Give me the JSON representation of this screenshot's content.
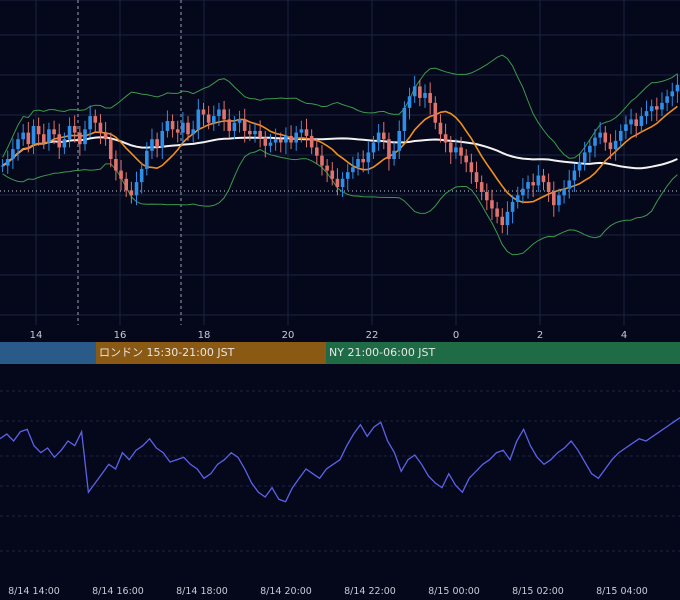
{
  "colors": {
    "background": "#05071a",
    "grid": "#1c2440",
    "candle_up": "#2f8fe8",
    "candle_down": "#e0736b",
    "bollinger": "#3c9a4d",
    "ma_short": "#ef8f1f",
    "ma_long": "#f2f2f2",
    "oscillator": "#5b62e8",
    "axis_text": "#c8cad6",
    "tokyo": "#2a5a8a",
    "london": "#8a5a14",
    "newyork": "#1f6b45"
  },
  "sessions": [
    {
      "label": "",
      "color": "#2a5a8a"
    },
    {
      "label": "ロンドン 15:30-21:00 JST",
      "color": "#8a5a14"
    },
    {
      "label": "NY 21:00-06:00 JST",
      "color": "#1f6b45"
    }
  ],
  "chart_data": [
    {
      "type": "candlestick",
      "x_tick_labels": [
        "14",
        "16",
        "18",
        "20",
        "22",
        "0",
        "2",
        "4"
      ],
      "series_close": [
        0.36,
        0.4,
        0.46,
        0.52,
        0.56,
        0.49,
        0.6,
        0.55,
        0.5,
        0.58,
        0.55,
        0.47,
        0.52,
        0.6,
        0.56,
        0.49,
        0.58,
        0.66,
        0.62,
        0.56,
        0.52,
        0.4,
        0.33,
        0.28,
        0.21,
        0.18,
        0.26,
        0.34,
        0.45,
        0.52,
        0.47,
        0.57,
        0.63,
        0.58,
        0.56,
        0.62,
        0.55,
        0.58,
        0.7,
        0.67,
        0.62,
        0.66,
        0.7,
        0.64,
        0.57,
        0.62,
        0.64,
        0.57,
        0.55,
        0.57,
        0.53,
        0.48,
        0.5,
        0.52,
        0.5,
        0.54,
        0.5,
        0.56,
        0.58,
        0.54,
        0.47,
        0.42,
        0.36,
        0.33,
        0.28,
        0.23,
        0.28,
        0.32,
        0.35,
        0.4,
        0.38,
        0.44,
        0.5,
        0.56,
        0.52,
        0.4,
        0.45,
        0.57,
        0.71,
        0.78,
        0.84,
        0.77,
        0.8,
        0.74,
        0.62,
        0.55,
        0.5,
        0.44,
        0.47,
        0.42,
        0.38,
        0.32,
        0.26,
        0.2,
        0.15,
        0.1,
        0.05,
        0.0,
        0.08,
        0.14,
        0.18,
        0.22,
        0.26,
        0.24,
        0.3,
        0.26,
        0.2,
        0.12,
        0.18,
        0.22,
        0.27,
        0.33,
        0.38,
        0.44,
        0.48,
        0.53,
        0.56,
        0.5,
        0.46,
        0.51,
        0.57,
        0.61,
        0.64,
        0.6,
        0.66,
        0.69,
        0.72,
        0.7,
        0.74,
        0.78,
        0.81,
        0.85
      ],
      "bollinger": true,
      "moving_averages": [
        "short",
        "long"
      ]
    },
    {
      "type": "line",
      "name": "",
      "x_tick_labels": [
        "8/14 14:00",
        "8/14 16:00",
        "8/14 18:00",
        "8/14 20:00",
        "8/14 22:00",
        "8/15 00:00",
        "8/15 02:00",
        "8/15 04:00"
      ],
      "values": [
        61,
        63,
        60,
        64,
        65,
        58,
        55,
        57,
        53,
        56,
        60,
        58,
        64,
        38,
        42,
        46,
        50,
        48,
        55,
        52,
        56,
        58,
        61,
        57,
        55,
        51,
        52,
        53,
        50,
        48,
        44,
        46,
        50,
        52,
        55,
        53,
        48,
        42,
        38,
        36,
        40,
        35,
        34,
        40,
        44,
        48,
        46,
        44,
        48,
        50,
        52,
        58,
        63,
        67,
        62,
        66,
        68,
        60,
        55,
        47,
        52,
        54,
        50,
        45,
        42,
        40,
        46,
        41,
        38,
        44,
        47,
        50,
        52,
        55,
        56,
        52,
        60,
        65,
        58,
        53,
        50,
        52,
        55,
        57,
        60,
        56,
        51,
        46,
        44,
        48,
        52,
        55,
        57,
        59,
        61,
        60,
        62,
        64,
        66,
        68,
        70
      ]
    }
  ]
}
